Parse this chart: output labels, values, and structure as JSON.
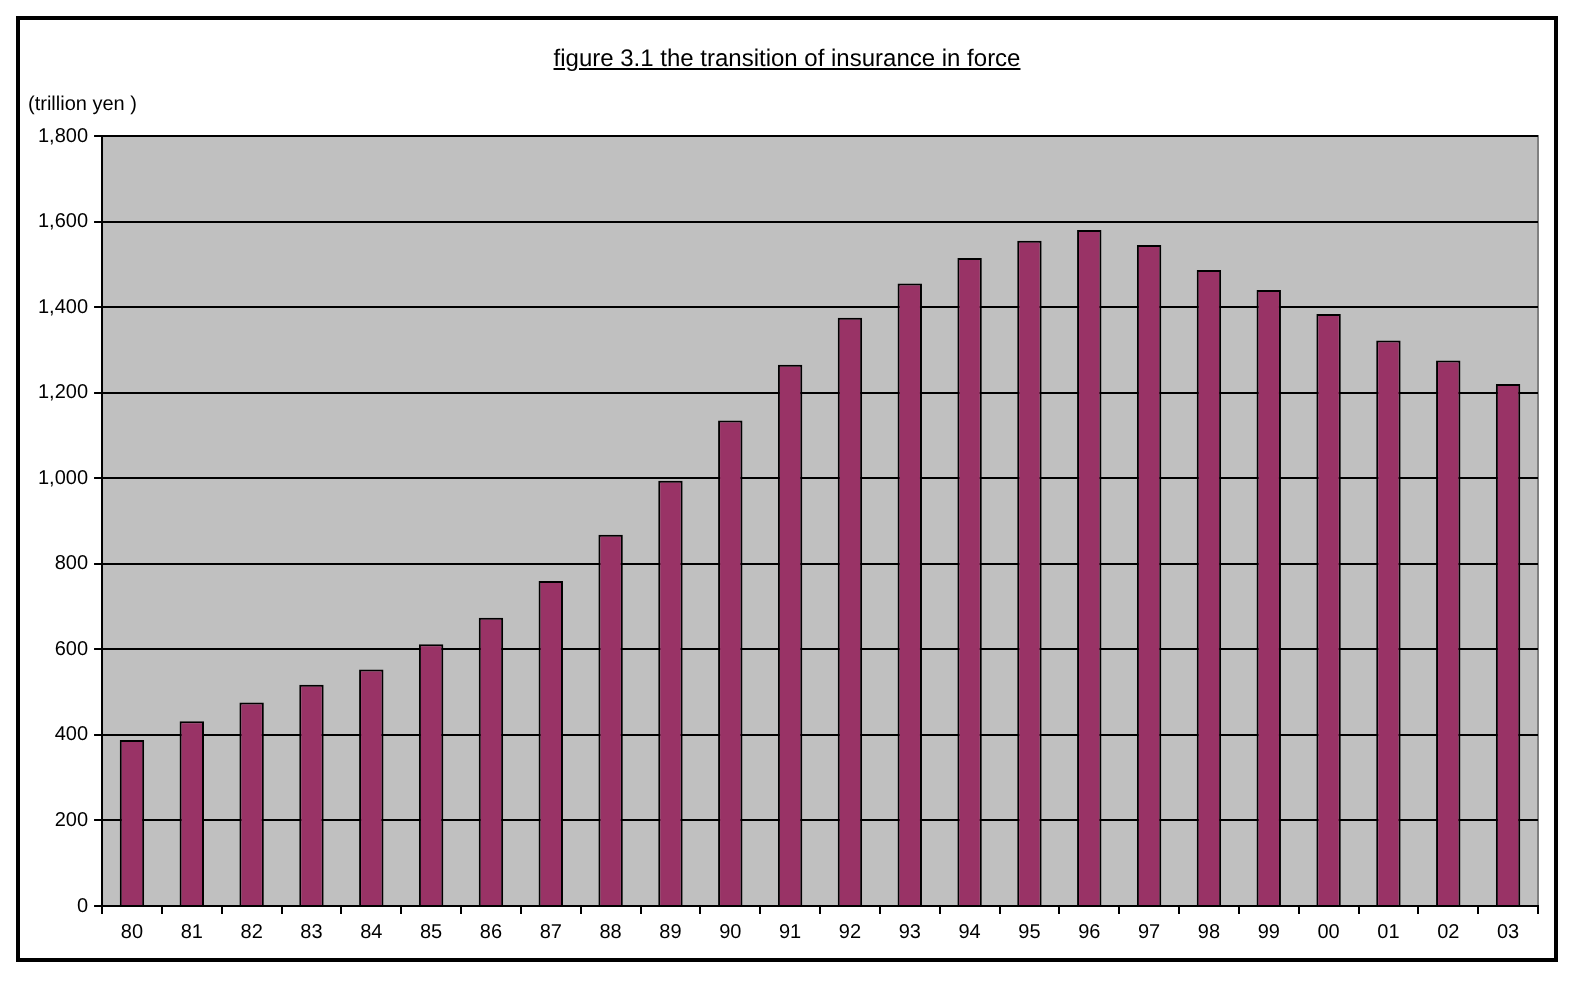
{
  "chart_data": {
    "type": "bar",
    "title": "figure 3.1  the transition of insurance in force",
    "ylabel": "(trillion yen )",
    "categories": [
      "80",
      "81",
      "82",
      "83",
      "84",
      "85",
      "86",
      "87",
      "88",
      "89",
      "90",
      "91",
      "92",
      "93",
      "94",
      "95",
      "96",
      "97",
      "98",
      "99",
      "00",
      "01",
      "02",
      "03"
    ],
    "values": [
      388,
      432,
      476,
      517,
      553,
      612,
      674,
      760,
      868,
      994,
      1135,
      1265,
      1375,
      1455,
      1515,
      1555,
      1580,
      1545,
      1487,
      1440,
      1384,
      1322,
      1275,
      1220
    ],
    "color": "#993366",
    "ylim": [
      0,
      1800
    ],
    "yticks": [
      {
        "value": 0,
        "label": "0"
      },
      {
        "value": 200,
        "label": "200"
      },
      {
        "value": 400,
        "label": "400"
      },
      {
        "value": 600,
        "label": "600"
      },
      {
        "value": 800,
        "label": "800"
      },
      {
        "value": 1000,
        "label": "1,000"
      },
      {
        "value": 1200,
        "label": "1,200"
      },
      {
        "value": 1400,
        "label": "1,400"
      },
      {
        "value": 1600,
        "label": "1,600"
      },
      {
        "value": 1800,
        "label": "1,800"
      }
    ],
    "grid": "y",
    "legend": false
  }
}
